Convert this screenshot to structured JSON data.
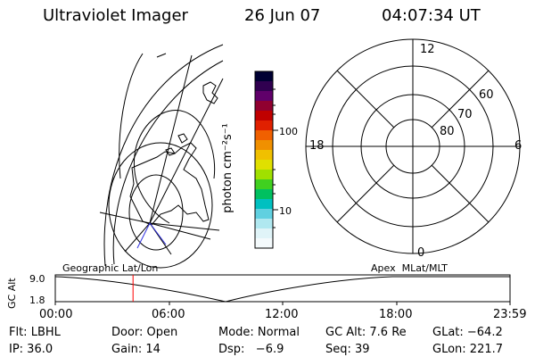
{
  "header": {
    "instrument": "Ultraviolet Imager",
    "date": "26 Jun 07",
    "time": "04:07:34 UT"
  },
  "colorbar": {
    "unit_label": "photon cm⁻²s⁻¹",
    "ticks": [
      "100",
      "10"
    ],
    "colors": [
      "#000033",
      "#300050",
      "#60006a",
      "#900030",
      "#c00000",
      "#e02000",
      "#f06000",
      "#f09000",
      "#f0c000",
      "#e0e000",
      "#a0e000",
      "#40d020",
      "#00c060",
      "#00c0c0",
      "#60d0e0",
      "#b0e8f0",
      "#e0f4f8",
      "#f4fafc"
    ]
  },
  "polar_plot": {
    "mlt_labels": [
      "12",
      "18",
      "6",
      "0"
    ],
    "lat_labels": [
      "60",
      "70",
      "80"
    ]
  },
  "timeline": {
    "ylabel": "GC Alt",
    "yticks": [
      "9.0",
      "1.8"
    ],
    "left_title": "Geographic Lat/Lon",
    "right_title": "Apex  MLat/MLT",
    "xticks": [
      "00:00",
      "06:00",
      "12:00",
      "18:00",
      "23:59"
    ],
    "marker_time_fraction": 0.171,
    "marker_color": "#ff0000"
  },
  "status": {
    "row1": [
      "Flt: LBHL",
      "Door: Open",
      "Mode: Normal",
      "GC Alt: 7.6 Re",
      "GLat: −64.2"
    ],
    "row2": [
      "IP: 36.0",
      "Gain: 14",
      "Dsp:   −6.9",
      "Seq: 39",
      "GLon: 221.7"
    ]
  }
}
